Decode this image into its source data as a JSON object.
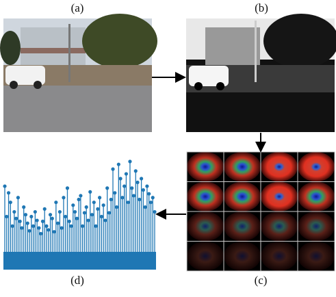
{
  "labels": {
    "a": "(a)",
    "b": "(b)",
    "c": "(c)",
    "d": "(d)"
  },
  "stem_plot": {
    "color": "#1f77b4",
    "values": [
      72,
      40,
      65,
      55,
      30,
      45,
      38,
      60,
      35,
      28,
      50,
      42,
      33,
      25,
      40,
      30,
      45,
      36,
      28,
      22,
      35,
      48,
      30,
      26,
      42,
      38,
      24,
      55,
      33,
      45,
      28,
      60,
      40,
      70,
      35,
      30,
      52,
      45,
      38,
      58,
      62,
      30,
      44,
      50,
      36,
      66,
      42,
      55,
      30,
      48,
      60,
      40,
      52,
      36,
      70,
      44,
      58,
      90,
      65,
      50,
      95,
      80,
      60,
      72,
      85,
      55,
      98,
      70,
      62,
      88,
      76,
      58,
      80,
      68,
      50,
      72,
      64,
      55,
      60,
      45
    ]
  }
}
